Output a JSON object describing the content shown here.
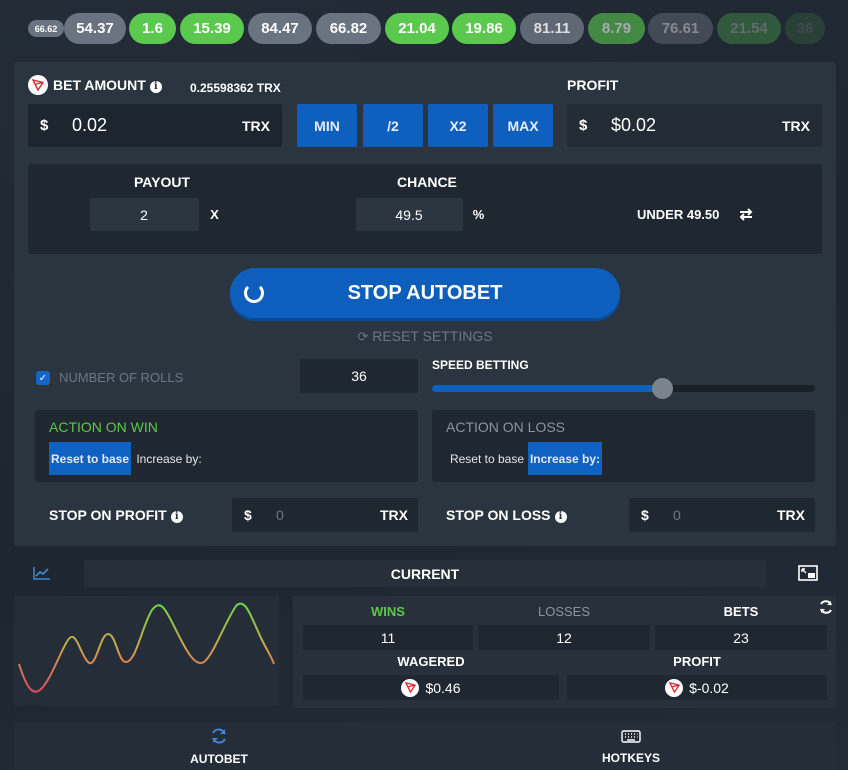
{
  "colors": {
    "accent_blue": "#0f5fbf",
    "win_green": "#5ac94e",
    "chip_grey": "#6a7480",
    "panel_bg": "#2b3540",
    "input_bg": "#1f2730",
    "muted_text": "#6c7783"
  },
  "ribbon": {
    "results": [
      {
        "value": "66.62",
        "style": "small"
      },
      {
        "value": "54.37",
        "style": "grey"
      },
      {
        "value": "1.6",
        "style": "green"
      },
      {
        "value": "15.39",
        "style": "green"
      },
      {
        "value": "84.47",
        "style": "grey"
      },
      {
        "value": "66.82",
        "style": "grey"
      },
      {
        "value": "21.04",
        "style": "green"
      },
      {
        "value": "19.86",
        "style": "green"
      },
      {
        "value": "81.11",
        "style": "grey"
      },
      {
        "value": "8.79",
        "style": "green"
      },
      {
        "value": "76.61",
        "style": "grey"
      },
      {
        "value": "21.54",
        "style": "green"
      },
      {
        "value": "36",
        "style": "green"
      }
    ]
  },
  "bet": {
    "label": "BET AMOUNT",
    "balance": "0.25598362 TRX",
    "currency_symbol": "$",
    "value": "0.02",
    "unit": "TRX",
    "buttons": {
      "min": "MIN",
      "half": "/2",
      "double": "X2",
      "max": "MAX"
    }
  },
  "profit": {
    "label": "PROFIT",
    "currency_symbol": "$",
    "value": "$0.02",
    "unit": "TRX"
  },
  "calc": {
    "payout_label": "PAYOUT",
    "payout_value": "2",
    "payout_suffix": "X",
    "chance_label": "CHANCE",
    "chance_value": "49.5",
    "chance_suffix": "%",
    "under_label": "UNDER 49.50"
  },
  "autobet": {
    "stop_label": "STOP AUTOBET",
    "reset_label": "RESET SETTINGS",
    "rolls_label": "NUMBER OF ROLLS",
    "rolls_value": "36",
    "speed_label": "SPEED BETTING",
    "speed_level": 0.6
  },
  "on_win": {
    "title": "ACTION ON WIN",
    "reset_label": "Reset to base",
    "increase_label": "Increase by:"
  },
  "on_loss": {
    "title": "ACTION ON LOSS",
    "reset_label": "Reset to base",
    "increase_label": "Increase by:"
  },
  "stop_profit": {
    "label": "STOP ON PROFIT",
    "currency_symbol": "$",
    "value": "0",
    "unit": "TRX"
  },
  "stop_loss": {
    "label": "STOP ON LOSS",
    "currency_symbol": "$",
    "value": "0",
    "unit": "TRX"
  },
  "stats": {
    "current_label": "CURRENT",
    "wins_label": "WINS",
    "losses_label": "LOSSES",
    "bets_label": "BETS",
    "wins": "11",
    "losses": "12",
    "bets": "23",
    "wagered_label": "WAGERED",
    "wagered": "$0.46",
    "profit_label": "PROFIT",
    "profit": "$-0.02"
  },
  "footer": {
    "autobet_label": "AUTOBET",
    "hotkeys_label": "HOTKEYS"
  }
}
